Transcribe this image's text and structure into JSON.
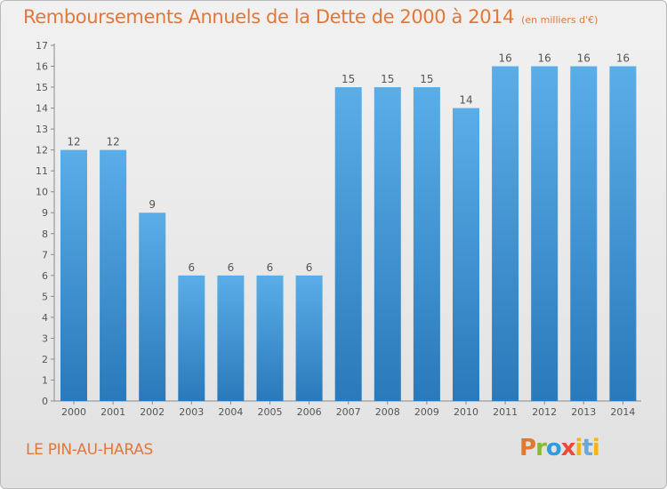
{
  "chart_data": {
    "type": "bar",
    "title": "Remboursements Annuels de la Dette de 2000 à 2014",
    "unit_note": "(en milliers d'€)",
    "categories": [
      "2000",
      "2001",
      "2002",
      "2003",
      "2004",
      "2005",
      "2006",
      "2007",
      "2008",
      "2009",
      "2010",
      "2011",
      "2012",
      "2013",
      "2014"
    ],
    "values": [
      12,
      12,
      9,
      6,
      6,
      6,
      6,
      15,
      15,
      15,
      14,
      16,
      16,
      16,
      16
    ],
    "ylim": [
      0,
      17
    ],
    "yticks": [
      0,
      1,
      2,
      3,
      4,
      5,
      6,
      7,
      8,
      9,
      10,
      11,
      12,
      13,
      14,
      15,
      16,
      17
    ],
    "grid": false,
    "legend": "none",
    "bar_color_top": "#5aaee8",
    "bar_color_bottom": "#2a79ba"
  },
  "footer": {
    "place_name": "LE PIN-AU-HARAS",
    "brand_letters": [
      "P",
      "r",
      "o",
      "x",
      "i",
      "t",
      "i"
    ]
  },
  "colors": {
    "title": "#e2773a",
    "background_top": "#f1f1f1",
    "background_bottom": "#e1e1e1"
  }
}
